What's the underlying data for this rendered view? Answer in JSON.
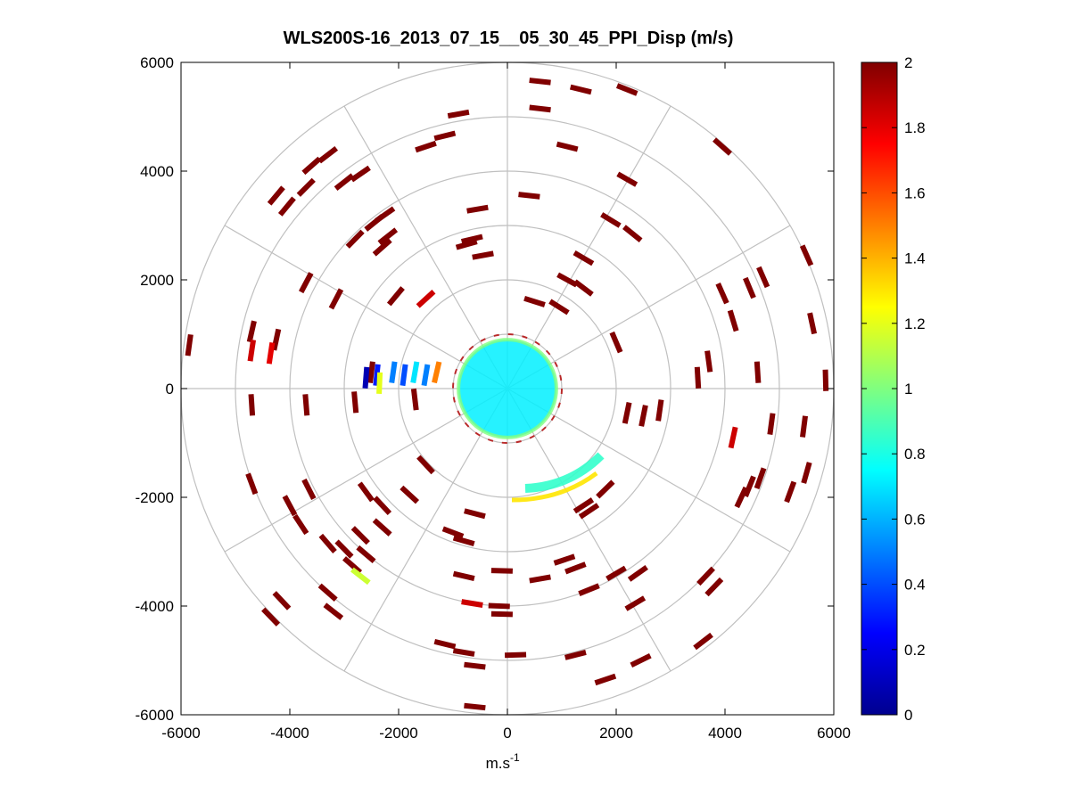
{
  "chart_data": {
    "type": "polar-ppi-scatter",
    "title": "WLS200S-16_2013_07_15__05_30_45_PPI_Disp (m/s)",
    "xlabel": "m.s",
    "xlabel_superscript": "-1",
    "xlim": [
      -6000,
      6000
    ],
    "ylim": [
      -6000,
      6000
    ],
    "x_ticks": [
      "-6000",
      "-4000",
      "-2000",
      "0",
      "2000",
      "4000",
      "6000"
    ],
    "x_tick_values": [
      -6000,
      -4000,
      -2000,
      0,
      2000,
      4000,
      6000
    ],
    "y_ticks": [
      "6000",
      "4000",
      "2000",
      "0",
      "-2000",
      "-4000",
      "-6000"
    ],
    "y_tick_values": [
      6000,
      4000,
      2000,
      0,
      -2000,
      -4000,
      -6000
    ],
    "polar_rings": [
      1000,
      2000,
      3000,
      4000,
      5000,
      6000
    ],
    "polar_spokes_deg": [
      0,
      30,
      60,
      90,
      120,
      150,
      180,
      210,
      240,
      270,
      300,
      330
    ],
    "colorbar": {
      "min": 0,
      "max": 2,
      "colormap": "jet",
      "ticks": [
        "0",
        "0.2",
        "0.4",
        "0.6",
        "0.8",
        "1",
        "1.2",
        "1.4",
        "1.6",
        "1.8",
        "2"
      ],
      "tick_values": [
        0,
        0.2,
        0.4,
        0.6,
        0.8,
        1.0,
        1.2,
        1.4,
        1.6,
        1.8,
        2.0
      ]
    },
    "points": [
      {
        "x": 600,
        "y": 5650,
        "v": 2
      },
      {
        "x": 1350,
        "y": 5500,
        "v": 2
      },
      {
        "x": 2200,
        "y": 5500,
        "v": 2
      },
      {
        "x": 600,
        "y": 5150,
        "v": 2
      },
      {
        "x": -900,
        "y": 5050,
        "v": 2
      },
      {
        "x": -1150,
        "y": 4650,
        "v": 2
      },
      {
        "x": -1500,
        "y": 4450,
        "v": 2
      },
      {
        "x": 1100,
        "y": 4450,
        "v": 2
      },
      {
        "x": 3950,
        "y": 4450,
        "v": 2
      },
      {
        "x": -3300,
        "y": 4300,
        "v": 2
      },
      {
        "x": -3600,
        "y": 4100,
        "v": 2
      },
      {
        "x": -2700,
        "y": 3950,
        "v": 2
      },
      {
        "x": -3000,
        "y": 3800,
        "v": 2
      },
      {
        "x": -3700,
        "y": 3700,
        "v": 2
      },
      {
        "x": -4250,
        "y": 3550,
        "v": 2
      },
      {
        "x": -4050,
        "y": 3350,
        "v": 2
      },
      {
        "x": 2200,
        "y": 3850,
        "v": 2
      },
      {
        "x": 400,
        "y": 3550,
        "v": 2
      },
      {
        "x": -550,
        "y": 3300,
        "v": 2
      },
      {
        "x": -2250,
        "y": 3200,
        "v": 2
      },
      {
        "x": -2450,
        "y": 3050,
        "v": 2
      },
      {
        "x": 1900,
        "y": 3100,
        "v": 2
      },
      {
        "x": -2200,
        "y": 2800,
        "v": 2
      },
      {
        "x": -2800,
        "y": 2750,
        "v": 2
      },
      {
        "x": -2300,
        "y": 2600,
        "v": 2
      },
      {
        "x": -650,
        "y": 2750,
        "v": 2
      },
      {
        "x": -750,
        "y": 2650,
        "v": 2
      },
      {
        "x": 2300,
        "y": 2850,
        "v": 2
      },
      {
        "x": -450,
        "y": 2450,
        "v": 2
      },
      {
        "x": 1400,
        "y": 2400,
        "v": 2
      },
      {
        "x": 5500,
        "y": 2450,
        "v": 2
      },
      {
        "x": 4700,
        "y": 2050,
        "v": 2
      },
      {
        "x": 4450,
        "y": 1850,
        "v": 2
      },
      {
        "x": 3950,
        "y": 1750,
        "v": 2
      },
      {
        "x": 1400,
        "y": 1850,
        "v": 2
      },
      {
        "x": 1100,
        "y": 2000,
        "v": 2
      },
      {
        "x": -3700,
        "y": 1950,
        "v": 2
      },
      {
        "x": -3150,
        "y": 1650,
        "v": 2
      },
      {
        "x": -2050,
        "y": 1700,
        "v": 2
      },
      {
        "x": -1500,
        "y": 1650,
        "v": 1.85
      },
      {
        "x": 500,
        "y": 1600,
        "v": 2
      },
      {
        "x": 950,
        "y": 1500,
        "v": 2
      },
      {
        "x": 5600,
        "y": 1200,
        "v": 2
      },
      {
        "x": 4150,
        "y": 1250,
        "v": 2
      },
      {
        "x": -4700,
        "y": 1050,
        "v": 2
      },
      {
        "x": -4250,
        "y": 900,
        "v": 2
      },
      {
        "x": -5850,
        "y": 800,
        "v": 2
      },
      {
        "x": -4700,
        "y": 700,
        "v": 1.85
      },
      {
        "x": -4350,
        "y": 650,
        "v": 1.8
      },
      {
        "x": 2000,
        "y": 850,
        "v": 2
      },
      {
        "x": 3700,
        "y": 500,
        "v": 2
      },
      {
        "x": 4600,
        "y": 300,
        "v": 2
      },
      {
        "x": -2500,
        "y": 300,
        "v": 2
      },
      {
        "x": -2600,
        "y": 200,
        "v": 0.1
      },
      {
        "x": -2400,
        "y": 250,
        "v": 0.3
      },
      {
        "x": -2100,
        "y": 300,
        "v": 0.5
      },
      {
        "x": -1900,
        "y": 250,
        "v": 0.4
      },
      {
        "x": -1700,
        "y": 300,
        "v": 0.7
      },
      {
        "x": -1500,
        "y": 250,
        "v": 0.5
      },
      {
        "x": -1300,
        "y": 300,
        "v": 1.5
      },
      {
        "x": -2350,
        "y": 100,
        "v": 1.2
      },
      {
        "x": 3500,
        "y": 200,
        "v": 2
      },
      {
        "x": 5850,
        "y": 150,
        "v": 2
      },
      {
        "x": -4700,
        "y": -300,
        "v": 2
      },
      {
        "x": -3700,
        "y": -300,
        "v": 2
      },
      {
        "x": -2800,
        "y": -250,
        "v": 2
      },
      {
        "x": -1700,
        "y": -200,
        "v": 2
      },
      {
        "x": 2200,
        "y": -450,
        "v": 2
      },
      {
        "x": 2500,
        "y": -500,
        "v": 2
      },
      {
        "x": 2800,
        "y": -400,
        "v": 2
      },
      {
        "x": 4150,
        "y": -900,
        "v": 1.85
      },
      {
        "x": 4850,
        "y": -650,
        "v": 2
      },
      {
        "x": 5450,
        "y": -700,
        "v": 2
      },
      {
        "x": 5500,
        "y": -1550,
        "v": 2
      },
      {
        "x": 5200,
        "y": -1900,
        "v": 2
      },
      {
        "x": 4650,
        "y": -1650,
        "v": 2
      },
      {
        "x": 4450,
        "y": -1800,
        "v": 2
      },
      {
        "x": 4300,
        "y": -2000,
        "v": 2
      },
      {
        "x": -4700,
        "y": -1750,
        "v": 2
      },
      {
        "x": -4000,
        "y": -2150,
        "v": 2
      },
      {
        "x": -3650,
        "y": -1850,
        "v": 2
      },
      {
        "x": -3800,
        "y": -2500,
        "v": 2
      },
      {
        "x": -2600,
        "y": -1900,
        "v": 2
      },
      {
        "x": -2300,
        "y": -2150,
        "v": 2
      },
      {
        "x": -1800,
        "y": -1950,
        "v": 2
      },
      {
        "x": -1500,
        "y": -1400,
        "v": 2
      },
      {
        "x": -600,
        "y": -2300,
        "v": 2
      },
      {
        "x": 1800,
        "y": -1850,
        "v": 2
      },
      {
        "x": 1400,
        "y": -2150,
        "v": 2
      },
      {
        "x": 1500,
        "y": -2250,
        "v": 2
      },
      {
        "x": -3300,
        "y": -2850,
        "v": 2
      },
      {
        "x": -3000,
        "y": -2950,
        "v": 2
      },
      {
        "x": -2700,
        "y": -2700,
        "v": 2
      },
      {
        "x": -2300,
        "y": -2550,
        "v": 2
      },
      {
        "x": -2850,
        "y": -3250,
        "v": 2
      },
      {
        "x": -2700,
        "y": -3450,
        "v": 1.15
      },
      {
        "x": -2600,
        "y": -3050,
        "v": 2
      },
      {
        "x": -800,
        "y": -2800,
        "v": 2
      },
      {
        "x": -1000,
        "y": -2650,
        "v": 2
      },
      {
        "x": 1050,
        "y": -3150,
        "v": 2
      },
      {
        "x": 1250,
        "y": -3300,
        "v": 2
      },
      {
        "x": 2000,
        "y": -3400,
        "v": 2
      },
      {
        "x": 2400,
        "y": -3400,
        "v": 2
      },
      {
        "x": 3650,
        "y": -3450,
        "v": 2
      },
      {
        "x": 3800,
        "y": -3650,
        "v": 2
      },
      {
        "x": -800,
        "y": -3450,
        "v": 2
      },
      {
        "x": -100,
        "y": -3350,
        "v": 2
      },
      {
        "x": 600,
        "y": -3500,
        "v": 2
      },
      {
        "x": 1500,
        "y": -3700,
        "v": 2
      },
      {
        "x": -4150,
        "y": -3900,
        "v": 2
      },
      {
        "x": -3300,
        "y": -3750,
        "v": 2
      },
      {
        "x": -3200,
        "y": -4100,
        "v": 2
      },
      {
        "x": -4350,
        "y": -4200,
        "v": 2
      },
      {
        "x": -650,
        "y": -3950,
        "v": 1.85
      },
      {
        "x": -150,
        "y": -4000,
        "v": 2
      },
      {
        "x": -100,
        "y": -4150,
        "v": 2
      },
      {
        "x": 2350,
        "y": -3950,
        "v": 2
      },
      {
        "x": 3600,
        "y": -4650,
        "v": 2
      },
      {
        "x": -1150,
        "y": -4700,
        "v": 2
      },
      {
        "x": -800,
        "y": -4850,
        "v": 2
      },
      {
        "x": -600,
        "y": -5100,
        "v": 2
      },
      {
        "x": 150,
        "y": -4900,
        "v": 2
      },
      {
        "x": 1250,
        "y": -4900,
        "v": 2
      },
      {
        "x": 2450,
        "y": -5000,
        "v": 2
      },
      {
        "x": 1800,
        "y": -5350,
        "v": 2
      },
      {
        "x": -600,
        "y": -5850,
        "v": 2
      }
    ]
  }
}
